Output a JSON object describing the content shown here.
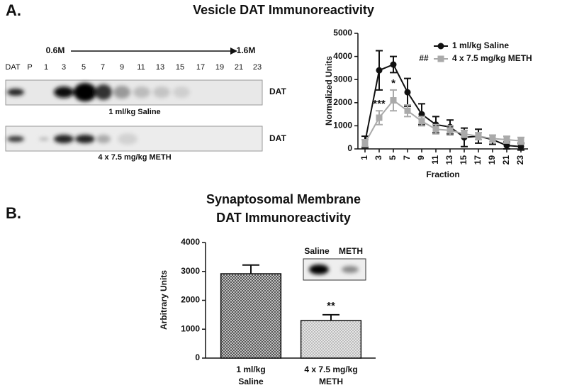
{
  "panels": [
    {
      "label": "A."
    },
    {
      "label": "B."
    }
  ],
  "blot": {
    "lanes": [
      "DAT",
      "P",
      "1",
      "3",
      "5",
      "7",
      "9",
      "11",
      "13",
      "15",
      "17",
      "19",
      "21",
      "23"
    ],
    "gradient": [
      "0.6M",
      "1.6M"
    ],
    "rows": [
      {
        "label": "DAT",
        "caption": "1 ml/kg Saline"
      },
      {
        "label": "DAT",
        "caption": "4 x 7.5 mg/kg METH"
      }
    ]
  },
  "chart_data": [
    {
      "type": "line",
      "title": "Vesicle DAT Immunoreactivity",
      "xlabel": "Fraction",
      "ylabel": "Normalized Units",
      "x": [
        1,
        3,
        5,
        7,
        9,
        11,
        13,
        15,
        17,
        19,
        21,
        23
      ],
      "xlim": [
        0,
        24
      ],
      "xticks": [
        1,
        3,
        5,
        7,
        9,
        11,
        13,
        15,
        17,
        19,
        21,
        23
      ],
      "ylim": [
        0,
        5000
      ],
      "yticks": [
        0,
        1000,
        2000,
        3000,
        4000,
        5000
      ],
      "series": [
        {
          "name": "1 ml/kg Saline",
          "color": "#111111",
          "marker": "circle",
          "values": [
            300,
            3400,
            3650,
            2450,
            1500,
            1050,
            950,
            500,
            550,
            400,
            150,
            100
          ],
          "errors": [
            250,
            850,
            350,
            600,
            450,
            350,
            300,
            400,
            300,
            200,
            150,
            150
          ]
        },
        {
          "name": "4 x 7.5 mg/kg METH",
          "color": "#aaaaaa",
          "marker": "square",
          "note": "##",
          "values": [
            250,
            1350,
            2100,
            1650,
            1200,
            850,
            800,
            650,
            550,
            450,
            400,
            350
          ],
          "errors": [
            150,
            300,
            450,
            250,
            200,
            200,
            200,
            150,
            150,
            150,
            150,
            150
          ]
        }
      ],
      "annotations": [
        {
          "text": "***",
          "x": 3
        },
        {
          "text": "*",
          "x": 5
        }
      ]
    },
    {
      "type": "bar",
      "title": [
        "Synaptosomal Membrane",
        "DAT Immunoreactivity"
      ],
      "ylabel": "Arbitrary Units",
      "categories": [
        [
          "1 ml/kg",
          "Saline"
        ],
        [
          "4 x 7.5 mg/kg",
          "METH"
        ]
      ],
      "values": [
        2920,
        1300
      ],
      "errors": [
        300,
        200
      ],
      "colors": [
        "#555555",
        "#bbbbbb"
      ],
      "ylim": [
        0,
        4000
      ],
      "yticks": [
        0,
        1000,
        2000,
        3000,
        4000
      ],
      "annotations": [
        {
          "text": "**",
          "category": 1
        }
      ],
      "inset_labels": [
        "Saline",
        "METH"
      ]
    }
  ]
}
